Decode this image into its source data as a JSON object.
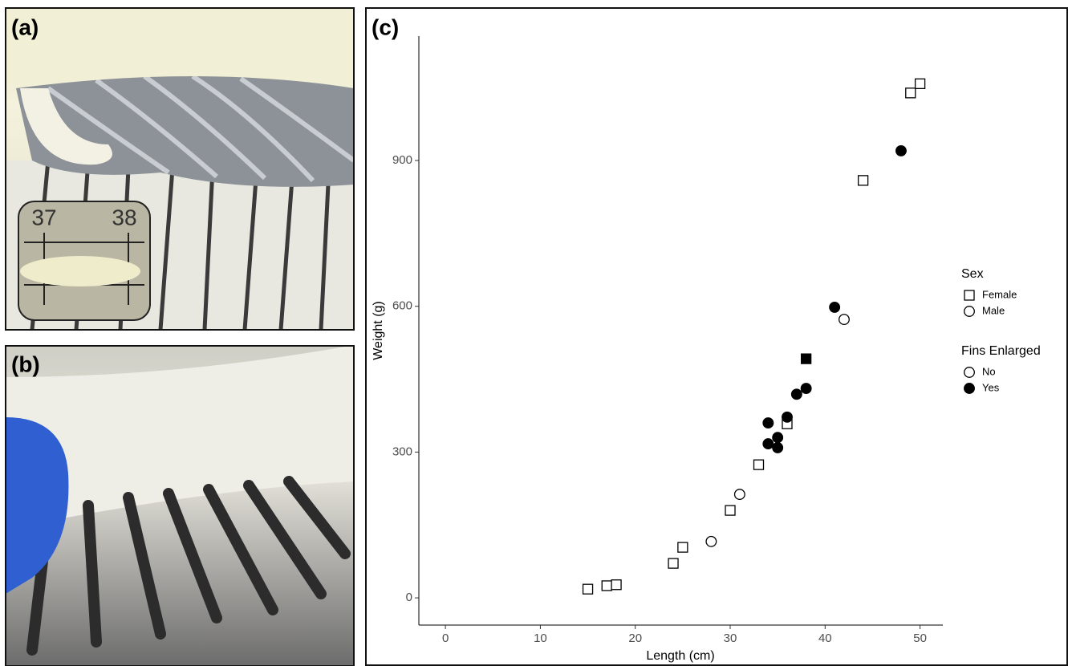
{
  "panels": {
    "a": {
      "label": "(a)",
      "inset_ruler": [
        "37",
        "38"
      ]
    },
    "b": {
      "label": "(b)"
    },
    "c": {
      "label": "(c)"
    }
  },
  "chart_data": {
    "type": "scatter",
    "x_label": "Length (cm)",
    "y_label": "Weight (g)",
    "xlim": [
      -2.8,
      52.4
    ],
    "ylim": [
      -56,
      1156
    ],
    "xticks": [
      0,
      10,
      20,
      30,
      40,
      50
    ],
    "yticks": [
      0,
      300,
      600,
      900
    ],
    "grid": false,
    "legends": [
      {
        "title": "Sex",
        "entries": [
          "Female",
          "Male"
        ]
      },
      {
        "title": "Fins Enlarged",
        "entries": [
          "No",
          "Yes"
        ]
      }
    ],
    "series": [
      {
        "marker": "square",
        "filled": false,
        "color": "#000000",
        "x": [
          15,
          17,
          18,
          24,
          25,
          30,
          33,
          36,
          44,
          49,
          50
        ],
        "values": [
          18,
          25,
          27,
          71,
          104,
          180,
          274,
          358,
          859,
          1039,
          1058
        ]
      },
      {
        "marker": "square",
        "filled": true,
        "color": "#000000",
        "x": [
          38
        ],
        "values": [
          492
        ]
      },
      {
        "marker": "circle",
        "filled": false,
        "color": "#000000",
        "x": [
          28,
          31,
          42
        ],
        "values": [
          116,
          213,
          573
        ]
      },
      {
        "marker": "circle",
        "filled": true,
        "color": "#000000",
        "x": [
          34,
          34,
          35,
          35,
          36,
          37,
          38,
          41,
          48
        ],
        "values": [
          360,
          317,
          330,
          309,
          372,
          419,
          431,
          598,
          920
        ]
      }
    ]
  }
}
